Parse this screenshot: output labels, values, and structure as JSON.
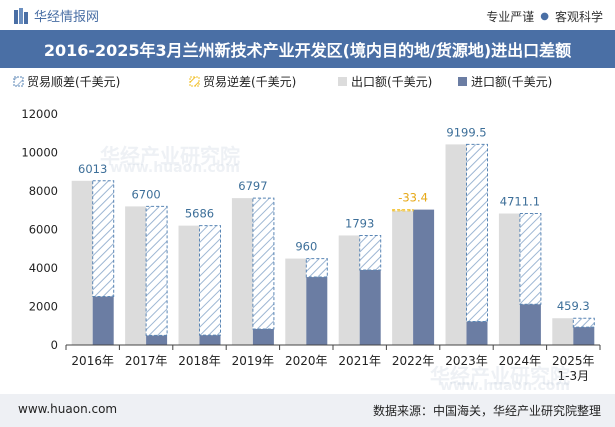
{
  "header": {
    "brand": "华经情报网",
    "tag1": "专业严谨",
    "tag2": "客观科学"
  },
  "title": "2016-2025年3月兰州新技术产业开发区(境内目的地/货源地)进出口差额",
  "footer": {
    "site": "www.huaon.com",
    "source": "数据来源：中国海关，华经产业研究院整理"
  },
  "watermarks": [
    "华经产业研究院",
    "www.huaon.com",
    "华经产业研究院",
    "www.huaon.com"
  ],
  "colors": {
    "header": "#4a6fa5",
    "export": "#dcdcdc",
    "import": "#6b7da3",
    "surplus": "#5a86b5",
    "deficit": "#f2c12e",
    "label_pos": "#3d6f99",
    "label_neg": "#e6a817"
  },
  "chart_data": {
    "type": "bar",
    "categories": [
      "2016年",
      "2017年",
      "2018年",
      "2019年",
      "2020年",
      "2021年",
      "2022年",
      "2023年",
      "2024年",
      "2025年\n1-3月"
    ],
    "series": [
      {
        "name": "贸易顺差(千美元)",
        "values": [
          6013,
          6700,
          5686,
          6797,
          960,
          1793,
          0,
          9199.5,
          4711.1,
          459.3
        ]
      },
      {
        "name": "贸易逆差(千美元)",
        "values": [
          0,
          0,
          0,
          0,
          0,
          0,
          33.4,
          0,
          0,
          0
        ]
      },
      {
        "name": "出口额(千美元)",
        "values": [
          8530,
          7200,
          6200,
          7630,
          4490,
          5690,
          7000,
          10420,
          6830,
          1390
        ]
      },
      {
        "name": "进口额(千美元)",
        "values": [
          2517,
          500,
          514,
          833,
          3530,
          3897,
          7033,
          1220.5,
          2118.9,
          930.7
        ]
      }
    ],
    "data_labels": [
      "6013",
      "6700",
      "5686",
      "6797",
      "960",
      "1793",
      "-33.4",
      "9199.5",
      "4711.1",
      "459.3"
    ],
    "ylim": [
      0,
      12000
    ],
    "yticks": [
      0,
      2000,
      4000,
      6000,
      8000,
      10000,
      12000
    ],
    "legend_position": "top-left",
    "grid": false
  }
}
